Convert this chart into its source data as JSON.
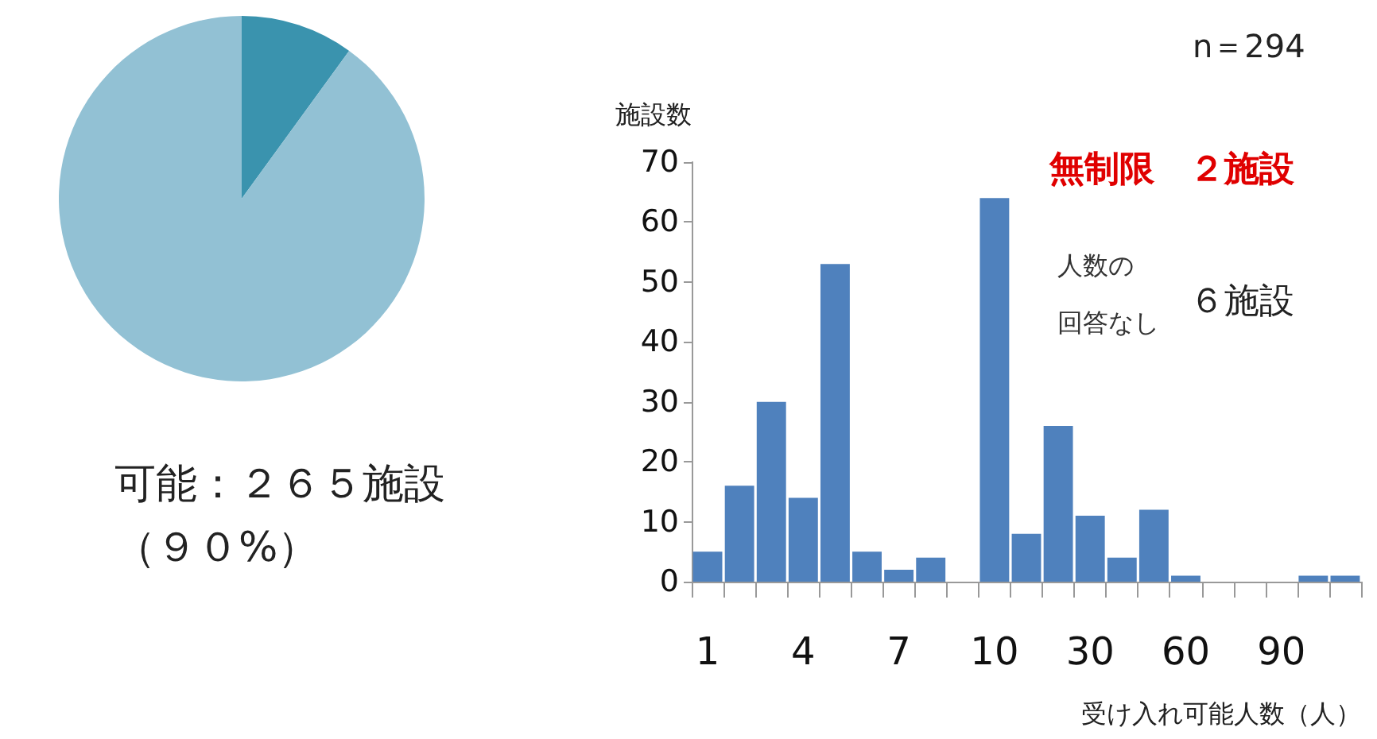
{
  "chart_data": [
    {
      "type": "pie",
      "categories": [
        null,
        "可能：２６５施設"
      ],
      "values": [
        10,
        90
      ],
      "colors": [
        "#3a93ae",
        "#92c1d4"
      ],
      "value_labels": [
        null,
        "（９０%）"
      ]
    },
    {
      "type": "bar",
      "ylabel": "施設数",
      "xlabel": "受け入れ可能人数（人）",
      "categories": [
        "1",
        null,
        null,
        "4",
        null,
        null,
        "7",
        null,
        null,
        "10",
        null,
        null,
        "30",
        null,
        null,
        "60",
        null,
        null,
        "90",
        null,
        null
      ],
      "values": [
        5,
        16,
        30,
        14,
        53,
        5,
        2,
        4,
        0,
        64,
        8,
        26,
        11,
        4,
        12,
        1,
        0,
        0,
        0,
        1,
        1
      ],
      "color": "#4f81bd",
      "ylim": [
        0,
        70
      ],
      "yticks": [
        0,
        10,
        20,
        30,
        40,
        50,
        60,
        70
      ],
      "annotations": [
        "n＝294",
        "無制限　２施設",
        "人数の",
        "回答なし",
        "６施設"
      ]
    }
  ]
}
